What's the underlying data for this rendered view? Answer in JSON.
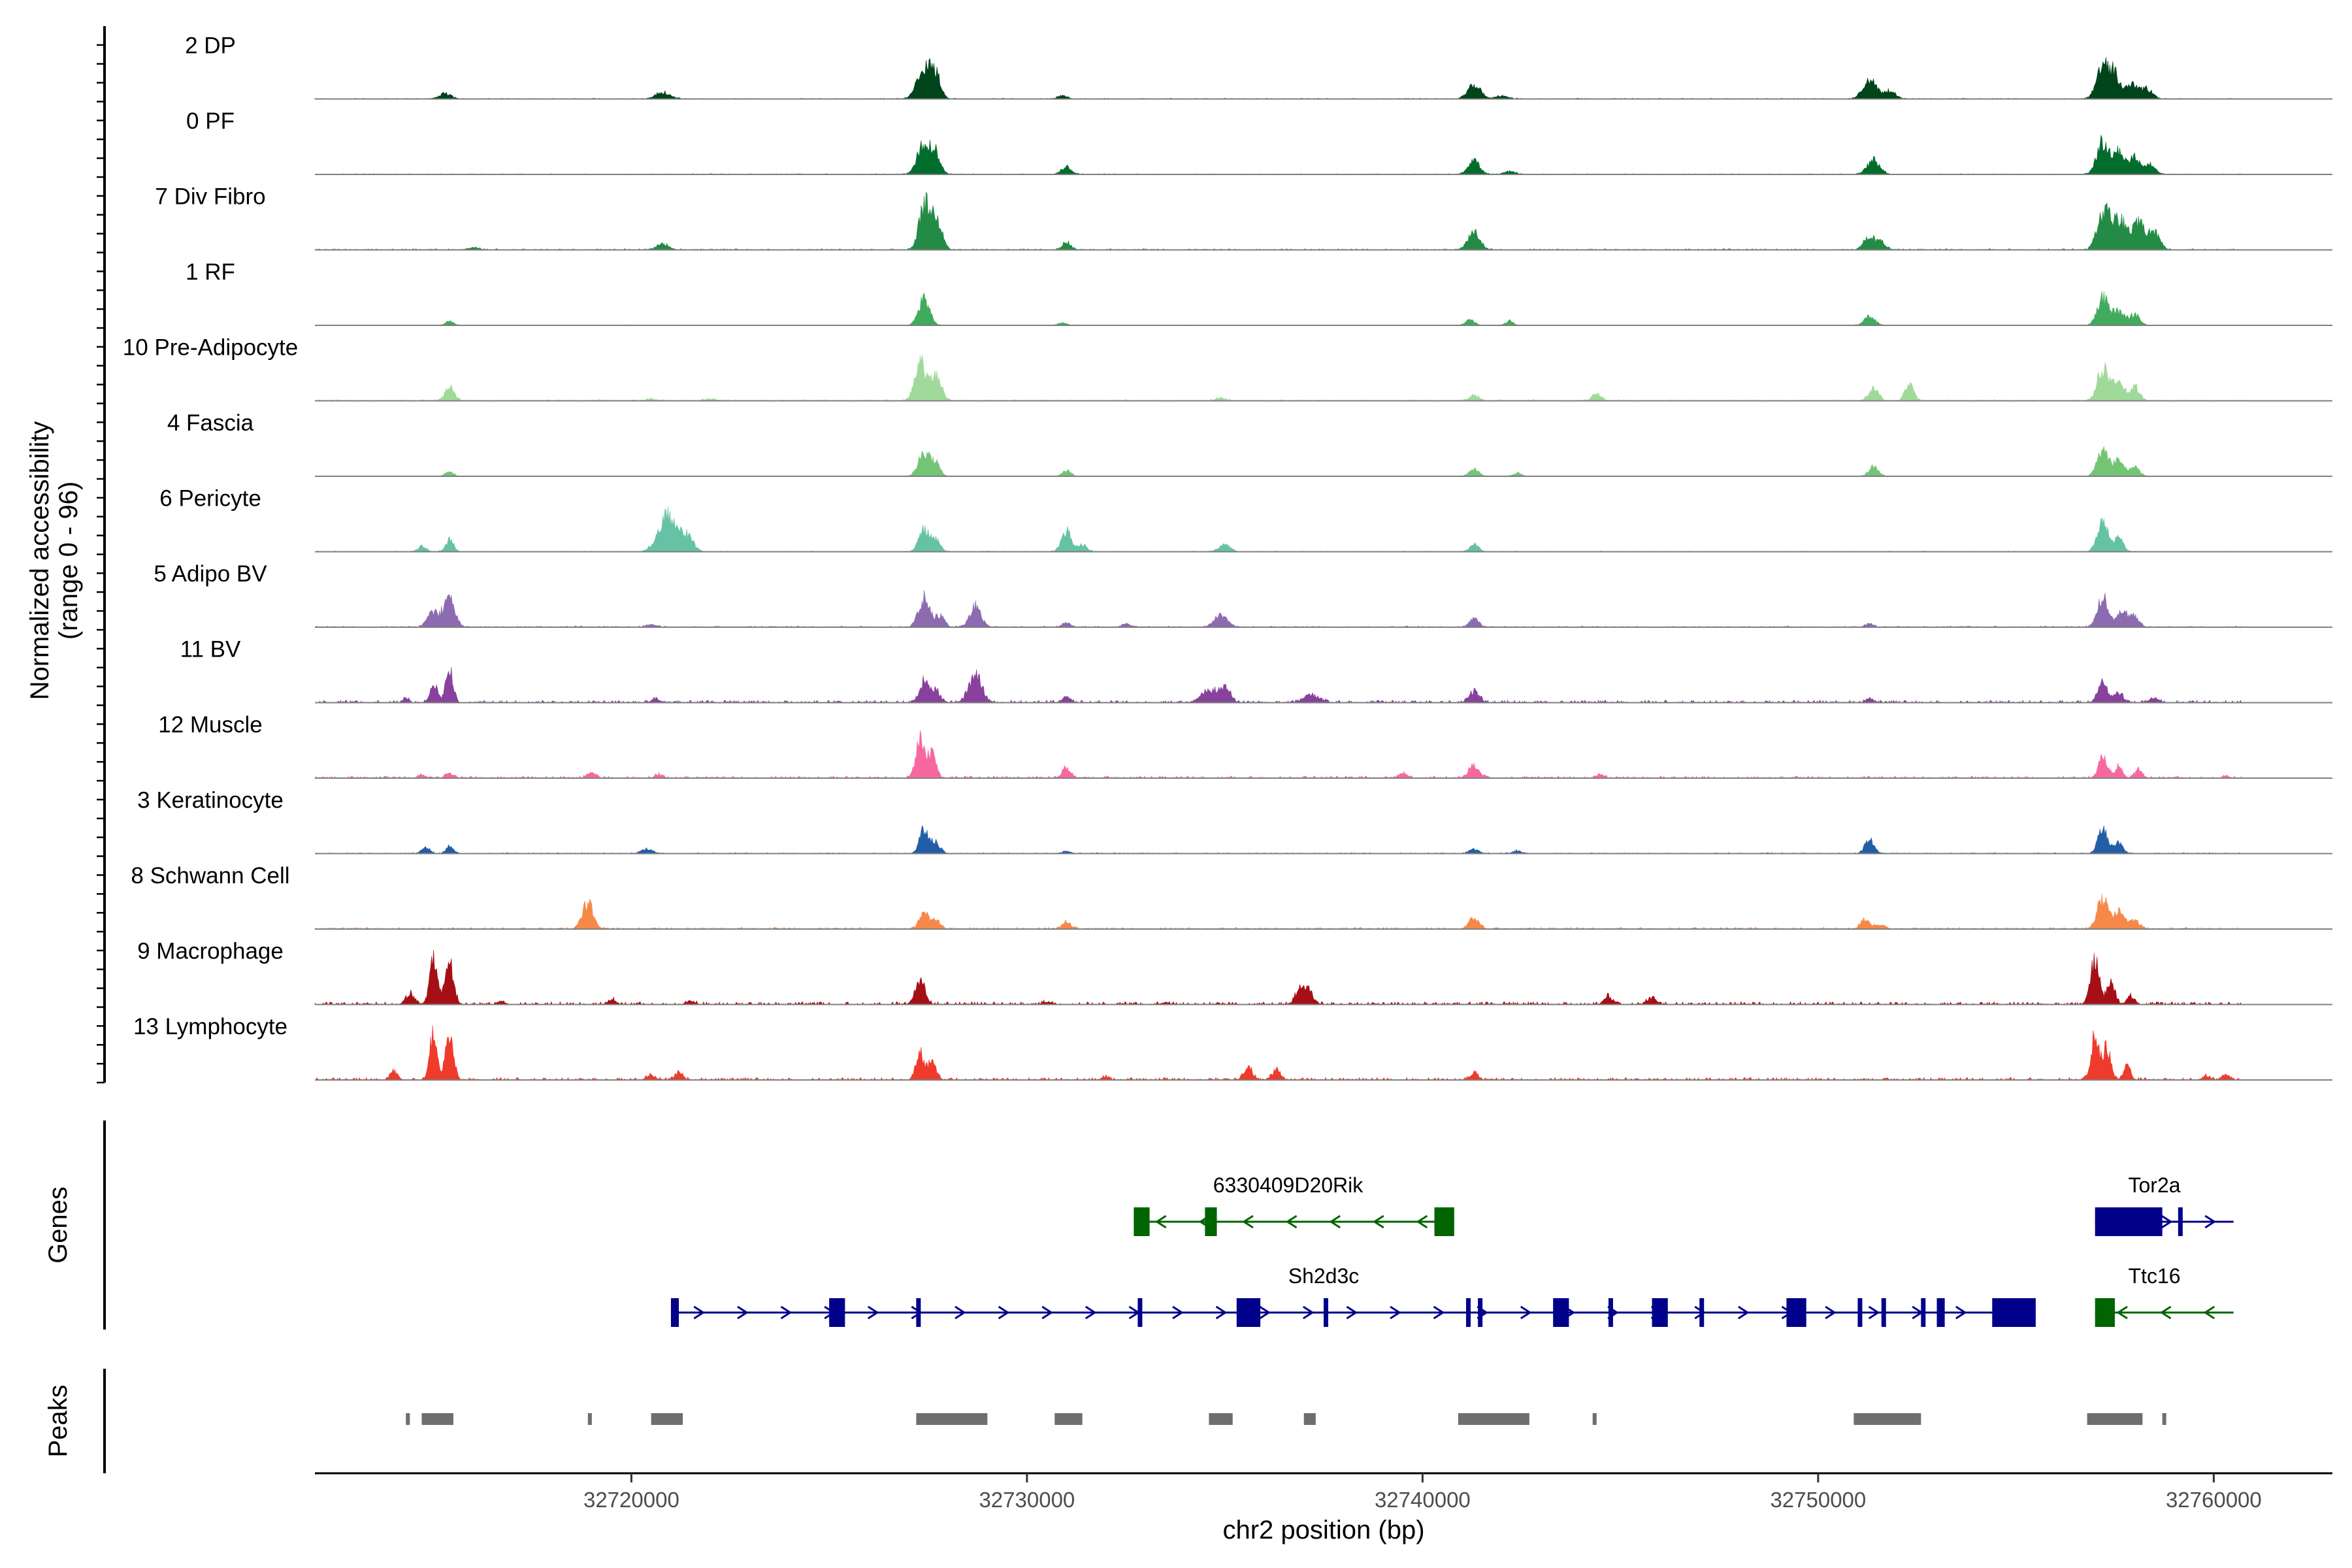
{
  "chart_data": {
    "type": "genome_browser",
    "region": {
      "chrom": "chr2",
      "start": 32712000,
      "end": 32763000
    },
    "y_axis_label": [
      "Normalized accessibility",
      "(range 0 - 96)"
    ],
    "y_range": [
      0,
      96
    ],
    "x_axis": {
      "label": "chr2 position (bp)",
      "ticks": [
        32720000,
        32730000,
        32740000,
        32750000,
        32760000
      ],
      "tick_labels": [
        "32720000",
        "32730000",
        "32740000",
        "32750000",
        "32760000"
      ]
    },
    "panel_labels": {
      "genes": "Genes",
      "peaks": "Peaks"
    },
    "tracks": [
      {
        "name": "2 DP",
        "color": "#00441b",
        "noise": 0.6,
        "peaks": [
          [
            32715300,
            10,
            150
          ],
          [
            32720800,
            12,
            180
          ],
          [
            32727400,
            58,
            180
          ],
          [
            32727700,
            40,
            120
          ],
          [
            32730900,
            6,
            120
          ],
          [
            32741300,
            28,
            160
          ],
          [
            32742000,
            6,
            150
          ],
          [
            32751300,
            35,
            170
          ],
          [
            32751800,
            15,
            150
          ],
          [
            32757200,
            60,
            160
          ],
          [
            32757500,
            40,
            130
          ],
          [
            32757900,
            28,
            150
          ],
          [
            32758300,
            18,
            150
          ]
        ]
      },
      {
        "name": "0 PF",
        "color": "#006d2c",
        "noise": 0.6,
        "peaks": [
          [
            32727400,
            55,
            170
          ],
          [
            32727700,
            35,
            120
          ],
          [
            32731000,
            14,
            130
          ],
          [
            32741300,
            26,
            140
          ],
          [
            32742200,
            5,
            150
          ],
          [
            32751400,
            26,
            160
          ],
          [
            32757200,
            62,
            150
          ],
          [
            32757600,
            40,
            140
          ],
          [
            32758000,
            32,
            130
          ],
          [
            32758400,
            18,
            130
          ]
        ]
      },
      {
        "name": "7 Div Fibro",
        "color": "#238b45",
        "noise": 0.9,
        "peaks": [
          [
            32716000,
            4,
            160
          ],
          [
            32720800,
            10,
            150
          ],
          [
            32727400,
            80,
            130
          ],
          [
            32727700,
            58,
            140
          ],
          [
            32731000,
            14,
            110
          ],
          [
            32741300,
            34,
            150
          ],
          [
            32751300,
            22,
            150
          ],
          [
            32751600,
            12,
            120
          ],
          [
            32757200,
            68,
            150
          ],
          [
            32757600,
            55,
            180
          ],
          [
            32758100,
            48,
            170
          ],
          [
            32758500,
            30,
            140
          ]
        ]
      },
      {
        "name": "1 RF",
        "color": "#41ab5d",
        "noise": 0.4,
        "peaks": [
          [
            32715400,
            8,
            100
          ],
          [
            32727400,
            48,
            140
          ],
          [
            32730900,
            5,
            110
          ],
          [
            32741200,
            10,
            120
          ],
          [
            32742200,
            8,
            100
          ],
          [
            32751300,
            17,
            130
          ],
          [
            32757200,
            52,
            140
          ],
          [
            32757600,
            26,
            140
          ],
          [
            32758000,
            20,
            130
          ]
        ]
      },
      {
        "name": "10 Pre-Adipocyte",
        "color": "#a1d99b",
        "noise": 0.9,
        "peaks": [
          [
            32715400,
            24,
            120
          ],
          [
            32720500,
            3,
            150
          ],
          [
            32722000,
            3,
            150
          ],
          [
            32727300,
            70,
            140
          ],
          [
            32727700,
            50,
            130
          ],
          [
            32734900,
            5,
            120
          ],
          [
            32741300,
            10,
            120
          ],
          [
            32744400,
            14,
            110
          ],
          [
            32751400,
            24,
            120
          ],
          [
            32752300,
            30,
            110
          ],
          [
            32757200,
            62,
            140
          ],
          [
            32757600,
            36,
            130
          ],
          [
            32758000,
            26,
            120
          ]
        ]
      },
      {
        "name": "4 Fascia",
        "color": "#74c476",
        "noise": 0.4,
        "peaks": [
          [
            32715400,
            10,
            100
          ],
          [
            32727400,
            44,
            140
          ],
          [
            32727700,
            24,
            110
          ],
          [
            32731000,
            10,
            110
          ],
          [
            32741300,
            13,
            120
          ],
          [
            32742400,
            6,
            100
          ],
          [
            32751400,
            18,
            120
          ],
          [
            32757200,
            48,
            140
          ],
          [
            32757600,
            28,
            130
          ],
          [
            32758000,
            18,
            120
          ]
        ]
      },
      {
        "name": "6 Pericyte",
        "color": "#66c2a4",
        "noise": 0.6,
        "peaks": [
          [
            32714700,
            10,
            110
          ],
          [
            32715400,
            22,
            100
          ],
          [
            32720900,
            68,
            220
          ],
          [
            32721400,
            30,
            160
          ],
          [
            32727400,
            40,
            130
          ],
          [
            32727700,
            22,
            110
          ],
          [
            32731000,
            38,
            130
          ],
          [
            32731400,
            12,
            110
          ],
          [
            32735000,
            13,
            140
          ],
          [
            32741300,
            14,
            110
          ],
          [
            32757200,
            52,
            140
          ],
          [
            32757600,
            25,
            110
          ]
        ]
      },
      {
        "name": "5 Adipo BV",
        "color": "#8c6bb1",
        "noise": 0.9,
        "peaks": [
          [
            32715000,
            28,
            150
          ],
          [
            32715400,
            52,
            140
          ],
          [
            32720500,
            4,
            150
          ],
          [
            32727400,
            52,
            140
          ],
          [
            32727800,
            22,
            110
          ],
          [
            32728700,
            38,
            140
          ],
          [
            32731000,
            8,
            110
          ],
          [
            32732500,
            6,
            110
          ],
          [
            32734900,
            24,
            160
          ],
          [
            32741300,
            16,
            120
          ],
          [
            32751300,
            6,
            110
          ],
          [
            32757200,
            56,
            140
          ],
          [
            32757700,
            28,
            140
          ],
          [
            32758000,
            18,
            110
          ]
        ]
      },
      {
        "name": "11 BV",
        "color": "#88419d",
        "noise": 1.8,
        "peaks": [
          [
            32714300,
            8,
            80
          ],
          [
            32715000,
            35,
            90
          ],
          [
            32715400,
            62,
            90
          ],
          [
            32720600,
            6,
            100
          ],
          [
            32727400,
            38,
            120
          ],
          [
            32727700,
            22,
            110
          ],
          [
            32728700,
            52,
            160
          ],
          [
            32731000,
            10,
            110
          ],
          [
            32734600,
            22,
            200
          ],
          [
            32735000,
            28,
            130
          ],
          [
            32737200,
            14,
            200
          ],
          [
            32741300,
            20,
            130
          ],
          [
            32751300,
            6,
            110
          ],
          [
            32757200,
            38,
            120
          ],
          [
            32757600,
            18,
            110
          ],
          [
            32758500,
            8,
            120
          ]
        ]
      },
      {
        "name": "12 Muscle",
        "color": "#f768a1",
        "noise": 1.5,
        "peaks": [
          [
            32714700,
            6,
            90
          ],
          [
            32715400,
            9,
            100
          ],
          [
            32719000,
            10,
            110
          ],
          [
            32720700,
            6,
            100
          ],
          [
            32727300,
            70,
            110
          ],
          [
            32727600,
            45,
            100
          ],
          [
            32731000,
            20,
            110
          ],
          [
            32739500,
            8,
            120
          ],
          [
            32741300,
            22,
            140
          ],
          [
            32744500,
            7,
            100
          ],
          [
            32757200,
            40,
            110
          ],
          [
            32757600,
            20,
            100
          ],
          [
            32758100,
            14,
            100
          ],
          [
            32760300,
            4,
            80
          ]
        ]
      },
      {
        "name": "3 Keratinocyte",
        "color": "#225ea8",
        "noise": 0.7,
        "peaks": [
          [
            32714800,
            12,
            100
          ],
          [
            32715400,
            14,
            90
          ],
          [
            32720400,
            8,
            150
          ],
          [
            32727400,
            44,
            120
          ],
          [
            32727700,
            20,
            110
          ],
          [
            32731000,
            4,
            110
          ],
          [
            32741300,
            8,
            130
          ],
          [
            32742400,
            5,
            120
          ],
          [
            32751300,
            24,
            120
          ],
          [
            32757200,
            48,
            120
          ],
          [
            32757600,
            20,
            110
          ]
        ]
      },
      {
        "name": "8 Schwann Cell",
        "color": "#f6894a",
        "noise": 1.2,
        "peaks": [
          [
            32718900,
            48,
            140
          ],
          [
            32727400,
            30,
            120
          ],
          [
            32727700,
            16,
            110
          ],
          [
            32731000,
            12,
            120
          ],
          [
            32741300,
            20,
            130
          ],
          [
            32751200,
            18,
            120
          ],
          [
            32751600,
            8,
            110
          ],
          [
            32757200,
            56,
            140
          ],
          [
            32757600,
            34,
            130
          ],
          [
            32758000,
            16,
            120
          ]
        ]
      },
      {
        "name": "9 Macrophage",
        "color": "#a50f15",
        "noise": 2.0,
        "peaks": [
          [
            32714400,
            18,
            110
          ],
          [
            32715000,
            80,
            100
          ],
          [
            32715400,
            85,
            100
          ],
          [
            32716700,
            6,
            90
          ],
          [
            32719500,
            9,
            100
          ],
          [
            32721500,
            6,
            110
          ],
          [
            32727300,
            44,
            120
          ],
          [
            32730500,
            5,
            100
          ],
          [
            32733500,
            4,
            100
          ],
          [
            32737000,
            40,
            160
          ],
          [
            32744700,
            14,
            110
          ],
          [
            32745800,
            12,
            110
          ],
          [
            32757000,
            82,
            110
          ],
          [
            32757400,
            40,
            100
          ],
          [
            32757900,
            16,
            100
          ]
        ]
      },
      {
        "name": "13 Lymphocyte",
        "color": "#ef3b2c",
        "noise": 1.8,
        "peaks": [
          [
            32714000,
            16,
            90
          ],
          [
            32715000,
            88,
            90
          ],
          [
            32715400,
            84,
            100
          ],
          [
            32720500,
            8,
            100
          ],
          [
            32721200,
            12,
            100
          ],
          [
            32727300,
            50,
            100
          ],
          [
            32727600,
            36,
            100
          ],
          [
            32732000,
            6,
            80
          ],
          [
            32735600,
            22,
            110
          ],
          [
            32736300,
            18,
            110
          ],
          [
            32741300,
            14,
            90
          ],
          [
            32757000,
            78,
            100
          ],
          [
            32757300,
            64,
            90
          ],
          [
            32757800,
            24,
            90
          ],
          [
            32759800,
            8,
            90
          ],
          [
            32760300,
            10,
            100
          ]
        ]
      }
    ],
    "genes": [
      {
        "name": "6330409D20Rik",
        "strand": "-",
        "color": "#006400",
        "row": 0,
        "start": 32732700,
        "end": 32740800,
        "exons": [
          [
            32732700,
            32733100
          ],
          [
            32734500,
            32734800
          ],
          [
            32740300,
            32740800
          ]
        ],
        "label_pos": 32736600
      },
      {
        "name": "Tor2a",
        "strand": "+",
        "color": "#00008b",
        "row": 0,
        "start": 32757000,
        "end": 32760500,
        "exons": [
          [
            32757000,
            32758700
          ],
          [
            32759100,
            32759200
          ]
        ],
        "label_pos": 32758500
      },
      {
        "name": "Sh2d3c",
        "strand": "+",
        "color": "#00008b",
        "row": 1,
        "start": 32721000,
        "end": 32755500,
        "exons": [
          [
            32721000,
            32721200
          ],
          [
            32725000,
            32725400
          ],
          [
            32727200,
            32727300
          ],
          [
            32732800,
            32732900
          ],
          [
            32735300,
            32735900
          ],
          [
            32737500,
            32737550
          ],
          [
            32741100,
            32741200
          ],
          [
            32741400,
            32741500
          ],
          [
            32743300,
            32743700
          ],
          [
            32744700,
            32744800
          ],
          [
            32745800,
            32746200
          ],
          [
            32747000,
            32747100
          ],
          [
            32749200,
            32749700
          ],
          [
            32751000,
            32751100
          ],
          [
            32751600,
            32751700
          ],
          [
            32752600,
            32752700
          ],
          [
            32753000,
            32753200
          ],
          [
            32754400,
            32755500
          ]
        ],
        "label_pos": 32737500
      },
      {
        "name": "Ttc16",
        "strand": "-",
        "color": "#006400",
        "row": 1,
        "start": 32757000,
        "end": 32760500,
        "exons": [
          [
            32757000,
            32757500
          ]
        ],
        "label_pos": 32758500
      }
    ],
    "peaks": [
      [
        32714300,
        32714400
      ],
      [
        32714700,
        32715500
      ],
      [
        32718900,
        32719000
      ],
      [
        32720500,
        32721300
      ],
      [
        32727200,
        32729000
      ],
      [
        32730700,
        32731400
      ],
      [
        32734600,
        32735200
      ],
      [
        32737000,
        32737300
      ],
      [
        32740900,
        32742700
      ],
      [
        32744300,
        32744400
      ],
      [
        32750900,
        32752600
      ],
      [
        32756800,
        32758200
      ],
      [
        32758700,
        32758800
      ]
    ]
  }
}
